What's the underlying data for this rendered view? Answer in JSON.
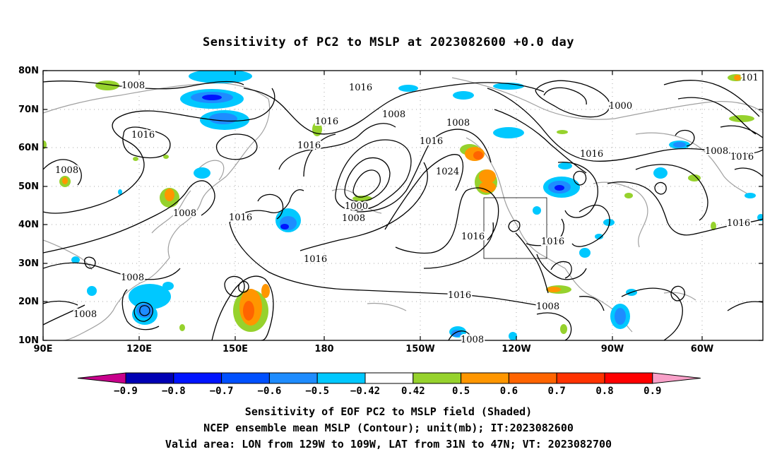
{
  "title": "Sensitivity of PC2 to MSLP at 2023082600 +0.0 day",
  "lat_labels": [
    "80N",
    "70N",
    "60N",
    "50N",
    "40N",
    "30N",
    "20N",
    "10N"
  ],
  "lon_labels": [
    "90E",
    "120E",
    "150E",
    "180",
    "150W",
    "120W",
    "90W",
    "60W"
  ],
  "contour_labels": [
    {
      "text": "1008"
    },
    {
      "text": "1016"
    },
    {
      "text": "1016"
    },
    {
      "text": "1016"
    },
    {
      "text": "1008"
    },
    {
      "text": "1008"
    },
    {
      "text": "1016"
    },
    {
      "text": "1016"
    },
    {
      "text": "1024"
    },
    {
      "text": "1000"
    },
    {
      "text": "1008"
    },
    {
      "text": "1016"
    },
    {
      "text": "1016"
    },
    {
      "text": "1016"
    },
    {
      "text": "1000"
    },
    {
      "text": "1008"
    },
    {
      "text": "1016"
    },
    {
      "text": "1016"
    },
    {
      "text": "1008"
    },
    {
      "text": "1008"
    },
    {
      "text": "1008"
    },
    {
      "text": "1008"
    },
    {
      "text": "1008"
    },
    {
      "text": "101"
    },
    {
      "text": "1016"
    },
    {
      "text": "1016"
    },
    {
      "text": "1008"
    }
  ],
  "colorbar": {
    "labels": [
      "-0.9",
      "-0.8",
      "-0.7",
      "-0.6",
      "-0.5",
      "-0.42",
      "0.42",
      "0.5",
      "0.6",
      "0.7",
      "0.8",
      "0.9"
    ],
    "colors": [
      "#c8008c",
      "#0000b4",
      "#0014ff",
      "#0050ff",
      "#1e8cff",
      "#00c8ff",
      "#ffffff",
      "#96d22d",
      "#ff9600",
      "#ff6400",
      "#ff3200",
      "#ff0000",
      "#f8a0c8"
    ]
  },
  "footer": {
    "line1": "Sensitivity of EOF PC2 to MSLP field (Shaded)",
    "line2": "NCEP ensemble mean MSLP (Contour); unit(mb); IT:2023082600",
    "line3": "Valid area: LON from 129W to 109W, LAT from 31N to 47N; VT: 2023082700"
  }
}
